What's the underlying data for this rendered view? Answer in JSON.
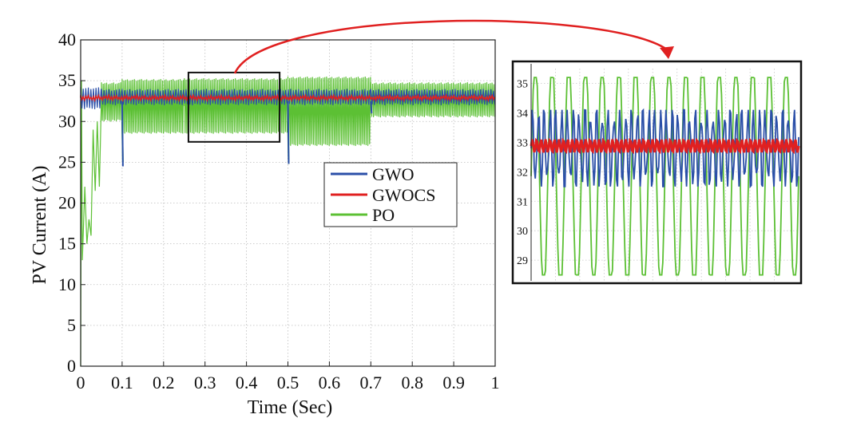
{
  "chart_data": [
    {
      "type": "line",
      "xlabel": "Time (Sec)",
      "ylabel": "PV Current (A)",
      "xlim": [
        0,
        1
      ],
      "ylim": [
        0,
        40
      ],
      "xticks": [
        "0",
        "0.1",
        "0.2",
        "0.3",
        "0.4",
        "0.5",
        "0.6",
        "0.7",
        "0.8",
        "0.9",
        "1"
      ],
      "yticks": [
        "0",
        "5",
        "10",
        "15",
        "20",
        "25",
        "30",
        "35",
        "40"
      ],
      "grid": true,
      "legend_position": "center-right",
      "zoom_box": {
        "x": [
          0.26,
          0.48
        ],
        "y": [
          27.5,
          36
        ]
      },
      "series": [
        {
          "name": "GWO",
          "color": "#2b4fa8",
          "segments": [
            {
              "x": [
                0.0,
                0.05
              ],
              "low": 31.5,
              "high": 34.2
            },
            {
              "x": [
                0.05,
                0.1
              ],
              "low": 32.0,
              "high": 34.0
            },
            {
              "x": [
                0.1,
                0.7
              ],
              "low": 32.0,
              "high": 34.0
            },
            {
              "x": [
                0.7,
                1.0
              ],
              "low": 32.0,
              "high": 34.0
            }
          ],
          "spikes": [
            {
              "x": 0.1,
              "y": 24.5
            },
            {
              "x": 0.5,
              "y": 24.8
            },
            {
              "x": 0.7,
              "y": 31.0
            }
          ]
        },
        {
          "name": "GWOCS",
          "color": "#e02020",
          "segments": [
            {
              "x": [
                0.0,
                1.0
              ],
              "low": 32.6,
              "high": 33.2
            }
          ]
        },
        {
          "name": "PO",
          "color": "#5cc034",
          "startup": [
            [
              0.0,
              0.0
            ],
            [
              0.002,
              35.0
            ],
            [
              0.004,
              13.0
            ],
            [
              0.01,
              22.0
            ],
            [
              0.015,
              15.0
            ],
            [
              0.02,
              18.0
            ],
            [
              0.025,
              16.0
            ],
            [
              0.03,
              29.0
            ],
            [
              0.035,
              21.5
            ],
            [
              0.04,
              30.0
            ],
            [
              0.045,
              22.0
            ],
            [
              0.05,
              33.0
            ]
          ],
          "segments": [
            {
              "x": [
                0.05,
                0.1
              ],
              "low": 30.0,
              "high": 34.8
            },
            {
              "x": [
                0.1,
                0.25
              ],
              "low": 28.5,
              "high": 35.2
            },
            {
              "x": [
                0.25,
                0.5
              ],
              "low": 28.5,
              "high": 35.3
            },
            {
              "x": [
                0.5,
                0.7
              ],
              "low": 27.0,
              "high": 35.5
            },
            {
              "x": [
                0.7,
                1.0
              ],
              "low": 30.5,
              "high": 34.8
            }
          ],
          "spikes": [
            {
              "x": 0.1,
              "y": 25.0
            },
            {
              "x": 0.5,
              "y": 24.8
            }
          ]
        }
      ]
    },
    {
      "type": "line",
      "title": "",
      "ylim": [
        28.3,
        35.5
      ],
      "yticks": [
        "29",
        "30",
        "31",
        "32",
        "33",
        "34",
        "35"
      ],
      "grid": true,
      "series": [
        {
          "name": "GWO",
          "color": "#2b4fa8",
          "low": 31.5,
          "high": 34.1,
          "cycles": 46
        },
        {
          "name": "GWOCS",
          "color": "#e02020",
          "low": 32.65,
          "high": 33.1,
          "cycles": 60
        },
        {
          "name": "PO",
          "color": "#5cc034",
          "low": 28.5,
          "high": 35.2,
          "cycles": 16
        }
      ]
    }
  ]
}
